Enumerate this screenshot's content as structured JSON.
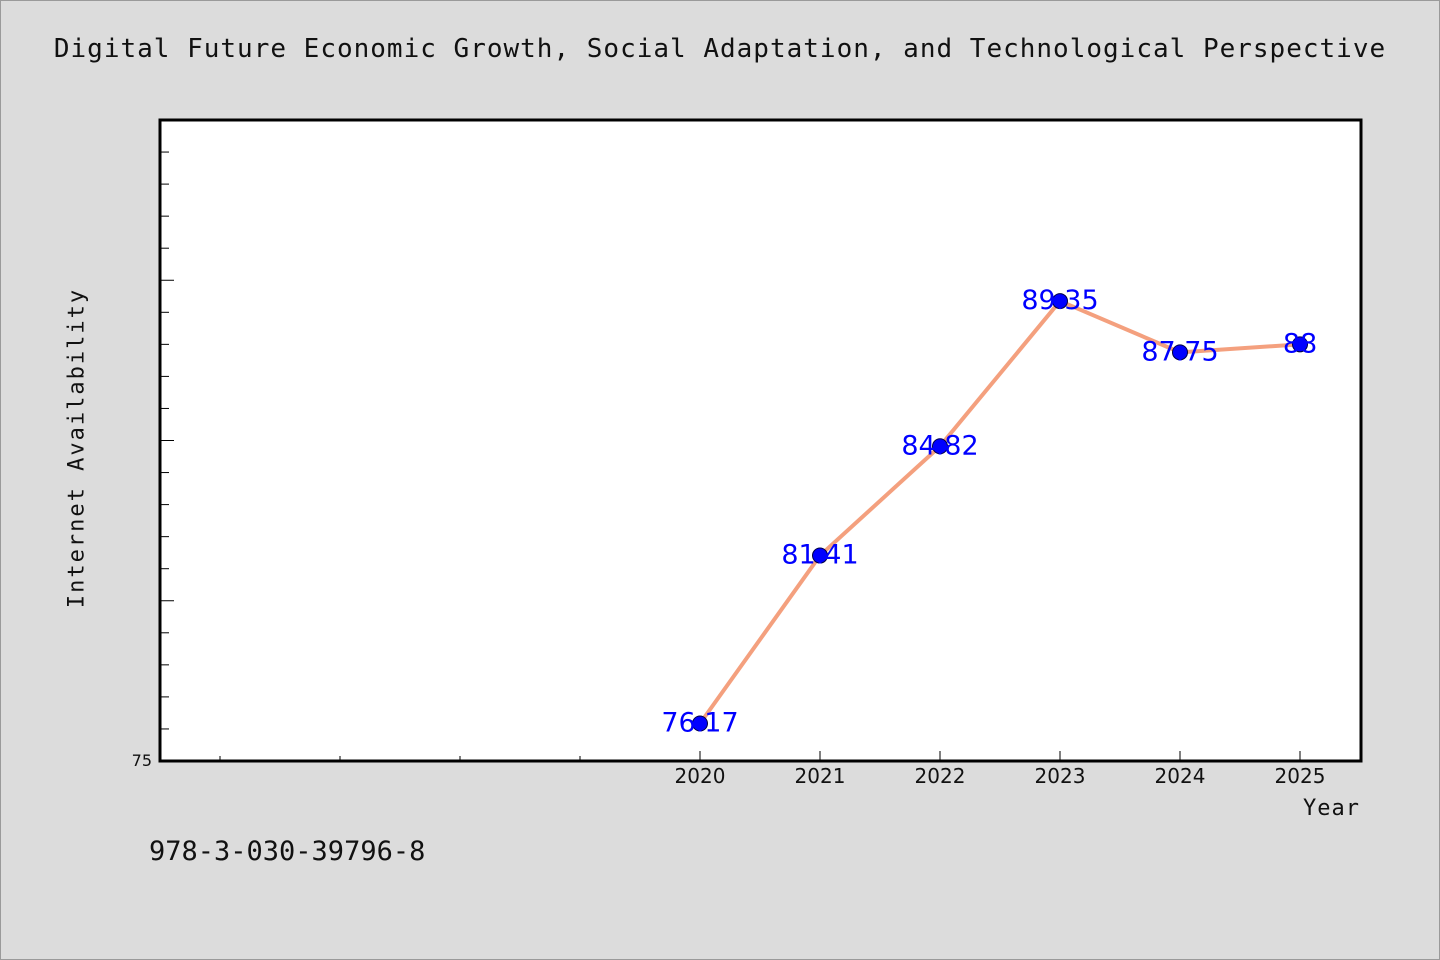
{
  "title": "Digital Future Economic Growth, Social Adaptation, and Technological Perspective",
  "isbn": "978-3-030-39796-8",
  "chart_data": {
    "type": "line",
    "xlabel": "Year",
    "ylabel": "Internet Availability",
    "categories": [
      "2020",
      "2021",
      "2022",
      "2023",
      "2024",
      "2025"
    ],
    "values": [
      76.17,
      81.41,
      84.82,
      89.35,
      87.75,
      88
    ],
    "data_labels": [
      "76.17",
      "81.41",
      "84.82",
      "89.35",
      "87.75",
      "88"
    ],
    "ylim": [
      75,
      95
    ],
    "y_tick_labels": [
      "75"
    ],
    "grid": false,
    "line_color": "#f4a07e",
    "marker_color": "#0000ff",
    "label_color": "#0000ff"
  }
}
